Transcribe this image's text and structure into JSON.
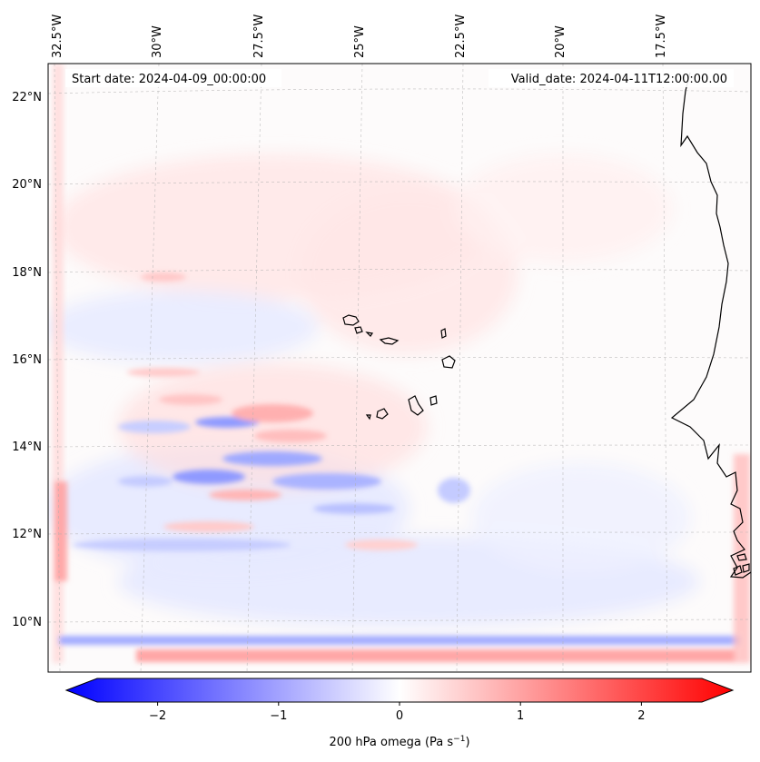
{
  "map": {
    "start_date": "Start date: 2024-04-09_00:00:00",
    "valid_date": "Valid_date: 2024-04-11T12:00:00.00",
    "lon_labels": [
      "32.5°W",
      "30°W",
      "27.5°W",
      "25°W",
      "22.5°W",
      "20°W",
      "17.5°W"
    ],
    "lat_labels": [
      "22°N",
      "20°N",
      "18°N",
      "16°N",
      "14°N",
      "12°N",
      "10°N"
    ],
    "colors": {
      "negative": "#0000ff",
      "zero": "#ffffff",
      "positive": "#ff0000",
      "coastline": "#000000",
      "gridline": "#b0b0b0"
    }
  },
  "colorbar": {
    "label_main": "200 hPa omega (Pa s",
    "label_exp": "−1",
    "label_end": ")",
    "ticks": [
      "−2",
      "−1",
      "0",
      "1",
      "2"
    ],
    "tick_values": [
      -2,
      -1,
      0,
      1,
      2
    ],
    "range": [
      -2.5,
      2.5
    ]
  }
}
